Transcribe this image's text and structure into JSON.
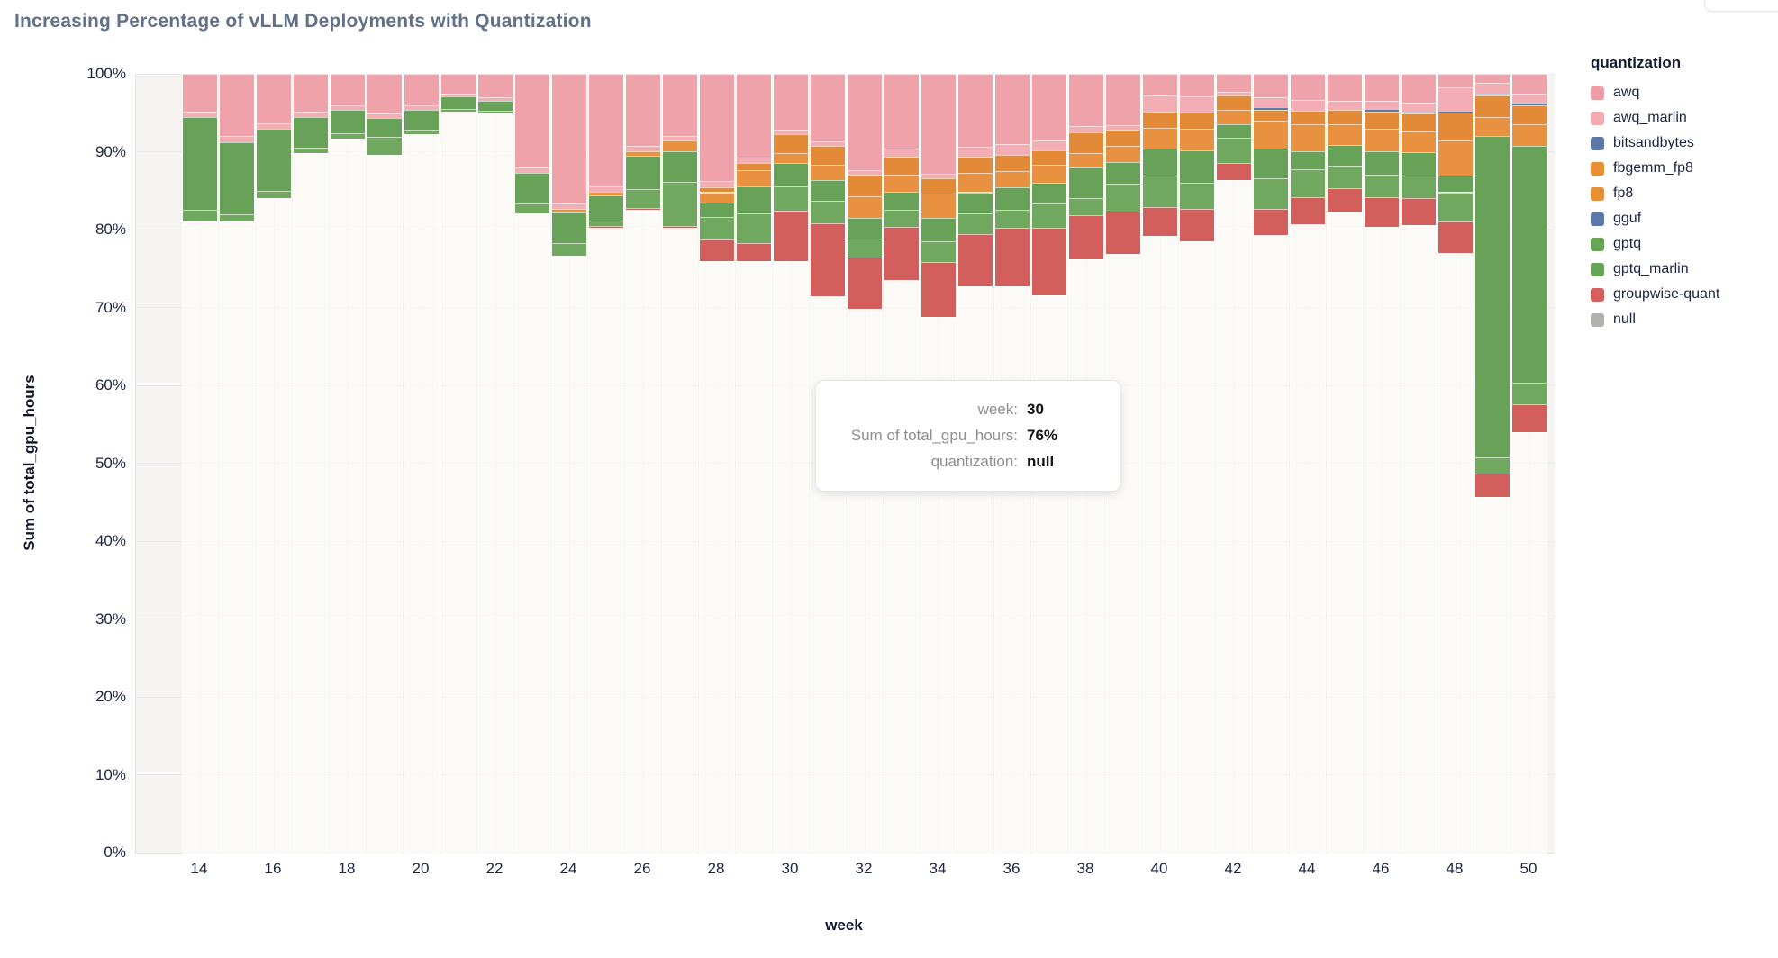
{
  "page": {
    "title": "Increasing Percentage of vLLM Deployments with Quantization"
  },
  "chart_data": {
    "type": "bar",
    "variant": "stacked-normalized-percent",
    "title": "Increasing Percentage of vLLM Deployments with Quantization",
    "xlabel": "week",
    "ylabel": "Sum of total_gpu_hours",
    "ylim": [
      0,
      100
    ],
    "y_tick_labels": [
      "0%",
      "10%",
      "20%",
      "30%",
      "40%",
      "50%",
      "60%",
      "70%",
      "80%",
      "90%",
      "100%"
    ],
    "x_ticks": [
      14,
      16,
      18,
      20,
      22,
      24,
      26,
      28,
      30,
      32,
      34,
      36,
      38,
      40,
      42,
      44,
      46,
      48,
      50
    ],
    "grid": true,
    "legend_position": "right",
    "stack_order_bottom_to_top": [
      "null",
      "groupwise-quant",
      "gptq_marlin",
      "gptq",
      "gguf",
      "fp8",
      "fbgemm_fp8",
      "bitsandbytes",
      "awq_marlin",
      "awq"
    ],
    "colors": {
      "awq": "#efa2aa",
      "awq_marlin": "#f3adb4",
      "bitsandbytes": "#5d7ba9",
      "fbgemm_fp8": "#e28a38",
      "fp8": "#e89140",
      "gguf": "#6583ae",
      "gptq": "#68a259",
      "gptq_marlin": "#71a860",
      "groupwise-quant": "#d25f5c",
      "null": "rgba(253,252,249,0.72)"
    },
    "bars": [
      {
        "week": 14,
        "segments": {
          "null": 81.0,
          "gptq_marlin": 1.5,
          "gptq": 11.9,
          "awq_marlin": 0.8,
          "awq": 4.8
        }
      },
      {
        "week": 15,
        "segments": {
          "null": 81.0,
          "gptq_marlin": 1.0,
          "gptq": 9.2,
          "awq_marlin": 0.8,
          "awq": 8.0
        }
      },
      {
        "week": 16,
        "segments": {
          "null": 84.1,
          "gptq_marlin": 0.9,
          "gptq": 7.9,
          "awq_marlin": 0.7,
          "awq": 6.4
        }
      },
      {
        "week": 17,
        "segments": {
          "null": 89.8,
          "gptq_marlin": 0.7,
          "gptq": 4.0,
          "awq_marlin": 0.6,
          "awq": 4.9
        }
      },
      {
        "week": 18,
        "segments": {
          "null": 91.7,
          "gptq_marlin": 0.7,
          "gptq": 3.0,
          "awq_marlin": 0.6,
          "awq": 4.0
        }
      },
      {
        "week": 19,
        "segments": {
          "null": 89.6,
          "gptq_marlin": 2.3,
          "gptq": 2.4,
          "awq_marlin": 0.6,
          "awq": 5.1
        }
      },
      {
        "week": 20,
        "segments": {
          "null": 92.3,
          "gptq_marlin": 0.5,
          "gptq": 2.6,
          "awq_marlin": 0.5,
          "awq": 4.1
        }
      },
      {
        "week": 21,
        "segments": {
          "null": 95.2,
          "gptq_marlin": 0.3,
          "gptq": 1.6,
          "awq_marlin": 0.4,
          "awq": 2.5
        }
      },
      {
        "week": 22,
        "segments": {
          "null": 94.9,
          "gptq_marlin": 0.4,
          "gptq": 1.2,
          "awq_marlin": 0.5,
          "awq": 3.0
        }
      },
      {
        "week": 23,
        "segments": {
          "null": 82.1,
          "gptq_marlin": 1.3,
          "gptq": 3.9,
          "awq_marlin": 0.7,
          "awq": 12.0
        }
      },
      {
        "week": 24,
        "segments": {
          "null": 76.6,
          "gptq_marlin": 1.7,
          "gptq": 3.9,
          "fp8": 0.5,
          "awq_marlin": 0.7,
          "awq": 16.6
        }
      },
      {
        "week": 25,
        "segments": {
          "null": 80.2,
          "groupwise-quant": 0.3,
          "gptq_marlin": 0.7,
          "gptq": 3.2,
          "fp8": 0.5,
          "awq_marlin": 0.6,
          "awq": 14.5
        }
      },
      {
        "week": 26,
        "segments": {
          "null": 82.6,
          "groupwise-quant": 0.2,
          "gptq_marlin": 2.4,
          "gptq": 4.3,
          "fp8": 0.6,
          "awq_marlin": 0.7,
          "awq": 9.2
        }
      },
      {
        "week": 27,
        "segments": {
          "null": 80.2,
          "groupwise-quant": 0.3,
          "gptq_marlin": 5.6,
          "gptq": 4.0,
          "fp8": 1.3,
          "awq_marlin": 0.6,
          "awq": 8.0
        }
      },
      {
        "week": 28,
        "segments": {
          "null": 76.0,
          "groupwise-quant": 2.7,
          "gptq_marlin": 2.9,
          "gptq": 1.9,
          "fp8": 1.3,
          "fbgemm_fp8": 0.6,
          "awq_marlin": 0.8,
          "awq": 13.8
        }
      },
      {
        "week": 29,
        "segments": {
          "null": 75.9,
          "groupwise-quant": 2.4,
          "gptq_marlin": 3.8,
          "gptq": 3.5,
          "fp8": 2.0,
          "fbgemm_fp8": 1.0,
          "awq_marlin": 0.7,
          "awq": 10.7
        }
      },
      {
        "week": 30,
        "segments": {
          "null": 76.0,
          "groupwise-quant": 6.4,
          "gptq_marlin": 3.2,
          "gptq": 3.0,
          "fp8": 1.2,
          "fbgemm_fp8": 2.4,
          "awq_marlin": 0.6,
          "awq": 7.2
        }
      },
      {
        "week": 31,
        "segments": {
          "null": 71.5,
          "groupwise-quant": 9.3,
          "gptq_marlin": 2.9,
          "gptq": 2.7,
          "fp8": 1.9,
          "fbgemm_fp8": 2.4,
          "awq_marlin": 0.6,
          "awq": 8.7
        }
      },
      {
        "week": 32,
        "segments": {
          "null": 69.8,
          "groupwise-quant": 6.6,
          "gptq_marlin": 2.5,
          "gptq": 2.6,
          "fp8": 2.8,
          "fbgemm_fp8": 2.7,
          "awq_marlin": 0.6,
          "awq": 12.4
        }
      },
      {
        "week": 33,
        "segments": {
          "null": 73.5,
          "groupwise-quant": 6.9,
          "gptq_marlin": 2.1,
          "gptq": 2.3,
          "fp8": 2.3,
          "fbgemm_fp8": 2.3,
          "awq_marlin": 1.0,
          "awq": 9.6
        }
      },
      {
        "week": 34,
        "segments": {
          "null": 68.8,
          "groupwise-quant": 7.0,
          "gptq_marlin": 2.7,
          "gptq": 3.0,
          "fp8": 3.1,
          "fbgemm_fp8": 2.0,
          "awq_marlin": 0.6,
          "awq": 12.8
        }
      },
      {
        "week": 35,
        "segments": {
          "null": 72.7,
          "groupwise-quant": 6.7,
          "gptq_marlin": 2.7,
          "gptq": 2.7,
          "fp8": 2.5,
          "fbgemm_fp8": 2.1,
          "awq_marlin": 1.2,
          "awq": 9.4
        }
      },
      {
        "week": 36,
        "segments": {
          "null": 72.7,
          "groupwise-quant": 7.5,
          "gptq_marlin": 2.3,
          "gptq": 2.9,
          "fp8": 2.1,
          "fbgemm_fp8": 2.1,
          "awq_marlin": 1.4,
          "awq": 9.0
        }
      },
      {
        "week": 37,
        "segments": {
          "null": 71.6,
          "groupwise-quant": 8.6,
          "gptq_marlin": 3.1,
          "gptq": 2.7,
          "fp8": 2.3,
          "fbgemm_fp8": 1.9,
          "awq_marlin": 1.3,
          "awq": 8.5
        }
      },
      {
        "week": 38,
        "segments": {
          "null": 76.2,
          "groupwise-quant": 5.7,
          "gptq_marlin": 2.2,
          "gptq": 3.9,
          "fp8": 1.8,
          "fbgemm_fp8": 2.7,
          "awq_marlin": 0.8,
          "awq": 6.7
        }
      },
      {
        "week": 39,
        "segments": {
          "null": 76.9,
          "groupwise-quant": 5.4,
          "gptq_marlin": 3.6,
          "gptq": 2.8,
          "fp8": 2.0,
          "fbgemm_fp8": 2.1,
          "awq_marlin": 0.6,
          "awq": 6.6
        }
      },
      {
        "week": 40,
        "segments": {
          "null": 79.2,
          "groupwise-quant": 3.7,
          "gptq_marlin": 4.0,
          "gptq": 3.5,
          "fp8": 2.7,
          "fbgemm_fp8": 2.1,
          "awq_marlin": 2.0,
          "awq": 2.8
        }
      },
      {
        "week": 41,
        "segments": {
          "null": 78.5,
          "groupwise-quant": 4.2,
          "gptq_marlin": 3.3,
          "gptq": 4.2,
          "fp8": 2.7,
          "fbgemm_fp8": 2.1,
          "awq_marlin": 2.1,
          "awq": 2.9
        }
      },
      {
        "week": 42,
        "segments": {
          "null": 86.4,
          "groupwise-quant": 2.1,
          "gptq_marlin": 3.3,
          "gptq": 1.7,
          "fp8": 1.9,
          "fbgemm_fp8": 1.8,
          "awq_marlin": 0.5,
          "awq": 2.3
        }
      },
      {
        "week": 43,
        "segments": {
          "null": 79.3,
          "groupwise-quant": 3.4,
          "gptq_marlin": 3.9,
          "gptq": 3.8,
          "fp8": 3.6,
          "fbgemm_fp8": 1.4,
          "bitsandbytes": 0.3,
          "awq_marlin": 1.3,
          "awq": 3.0
        }
      },
      {
        "week": 44,
        "segments": {
          "null": 80.7,
          "groupwise-quant": 3.5,
          "gptq_marlin": 3.6,
          "gptq": 2.3,
          "fp8": 3.4,
          "fbgemm_fp8": 1.8,
          "awq_marlin": 1.3,
          "awq": 3.4
        }
      },
      {
        "week": 45,
        "segments": {
          "null": 82.3,
          "groupwise-quant": 3.0,
          "gptq_marlin": 2.9,
          "gptq": 2.7,
          "fp8": 2.6,
          "fbgemm_fp8": 1.9,
          "awq_marlin": 1.1,
          "awq": 3.5
        }
      },
      {
        "week": 46,
        "segments": {
          "null": 80.4,
          "groupwise-quant": 3.8,
          "gptq_marlin": 2.9,
          "gptq": 3.0,
          "fp8": 2.9,
          "fbgemm_fp8": 2.2,
          "bitsandbytes": 0.3,
          "awq_marlin": 1.0,
          "awq": 3.5
        }
      },
      {
        "week": 47,
        "segments": {
          "null": 80.6,
          "groupwise-quant": 3.4,
          "gptq_marlin": 2.9,
          "gptq": 3.0,
          "fp8": 2.7,
          "fbgemm_fp8": 2.3,
          "bitsandbytes": 0.3,
          "awq_marlin": 1.1,
          "awq": 3.7
        }
      },
      {
        "week": 48,
        "segments": {
          "null": 77.0,
          "groupwise-quant": 4.0,
          "gptq_marlin": 3.8,
          "gptq": 2.1,
          "fp8": 4.6,
          "fbgemm_fp8": 3.5,
          "bitsandbytes": 0.3,
          "awq_marlin": 3.0,
          "awq": 1.7
        }
      },
      {
        "week": 49,
        "segments": {
          "null": 45.7,
          "groupwise-quant": 3.0,
          "gptq_marlin": 2.0,
          "gptq": 41.3,
          "fp8": 2.5,
          "fbgemm_fp8": 2.7,
          "bitsandbytes": 0.3,
          "awq_marlin": 1.3,
          "awq": 1.2
        }
      },
      {
        "week": 50,
        "segments": {
          "null": 54.0,
          "groupwise-quant": 3.6,
          "gptq_marlin": 2.8,
          "gptq": 30.3,
          "fp8": 2.8,
          "fbgemm_fp8": 2.5,
          "bitsandbytes": 0.3,
          "awq_marlin": 1.2,
          "awq": 2.5
        }
      }
    ]
  },
  "legend": {
    "title": "quantization",
    "items": [
      {
        "label": "awq",
        "color": "#ee9da6"
      },
      {
        "label": "awq_marlin",
        "color": "#f2aab1"
      },
      {
        "label": "bitsandbytes",
        "color": "#5b79a8"
      },
      {
        "label": "fbgemm_fp8",
        "color": "#e78f35"
      },
      {
        "label": "fp8",
        "color": "#e78f35"
      },
      {
        "label": "gguf",
        "color": "#5b79a8"
      },
      {
        "label": "gptq",
        "color": "#67a556"
      },
      {
        "label": "gptq_marlin",
        "color": "#67a556"
      },
      {
        "label": "groupwise-quant",
        "color": "#d4605e"
      },
      {
        "label": "null",
        "color": "#b3b1ae"
      }
    ]
  },
  "tooltip": {
    "rows": [
      {
        "label": "week:",
        "value": "30"
      },
      {
        "label": "Sum of total_gpu_hours:",
        "value": "76%"
      },
      {
        "label": "quantization:",
        "value": "null"
      }
    ]
  }
}
